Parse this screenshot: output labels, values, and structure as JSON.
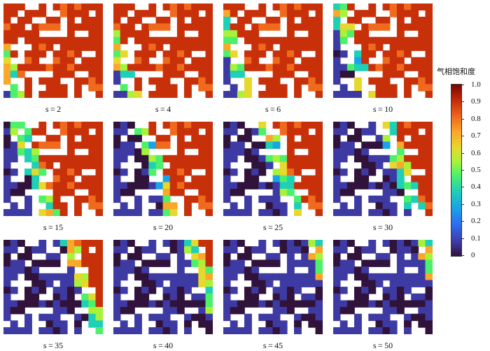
{
  "panels": [
    {
      "label": "s = 2",
      "step": 2
    },
    {
      "label": "s = 4",
      "step": 4
    },
    {
      "label": "s = 6",
      "step": 6
    },
    {
      "label": "s = 10",
      "step": 10
    },
    {
      "label": "s = 15",
      "step": 15
    },
    {
      "label": "s = 20",
      "step": 20
    },
    {
      "label": "s = 25",
      "step": 25
    },
    {
      "label": "s = 30",
      "step": 30
    },
    {
      "label": "s = 35",
      "step": 35
    },
    {
      "label": "s = 40",
      "step": 40
    },
    {
      "label": "s = 45",
      "step": 45
    },
    {
      "label": "s = 50",
      "step": 50
    }
  ],
  "colorbar": {
    "title": "气相饱和度",
    "ticks": [
      "1.0",
      "0.9",
      "0.8",
      "0.7",
      "0.6",
      "0.5",
      "0.4",
      "0.3",
      "0.2",
      "0.1",
      "0"
    ],
    "colors": [
      "#30123b",
      "#3e3aa3",
      "#2e6af2",
      "#1aa3e6",
      "#1fd0b6",
      "#4cf06a",
      "#a8f23a",
      "#e6d82c",
      "#fba828",
      "#f06a1e",
      "#c8300a",
      "#7a0403"
    ]
  }
}
